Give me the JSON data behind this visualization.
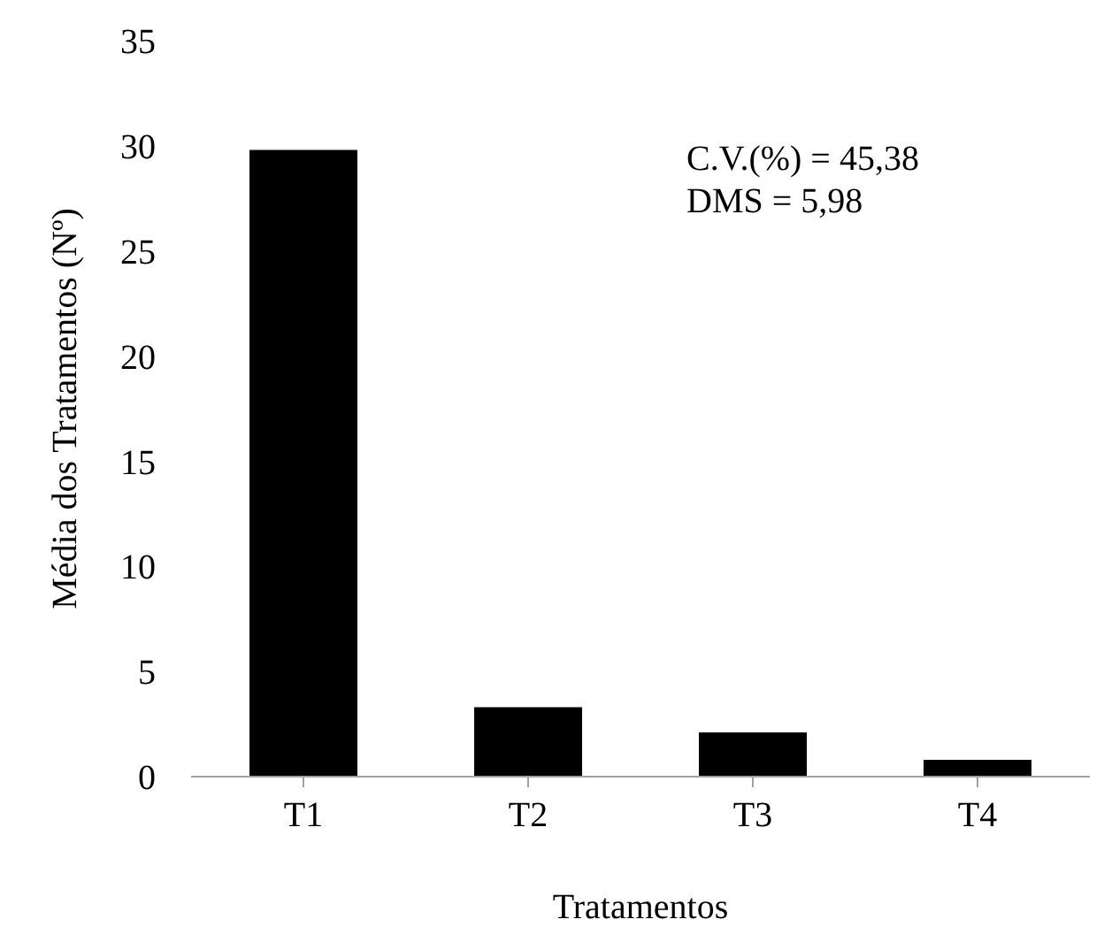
{
  "chart_data": {
    "type": "bar",
    "xlabel": "Tratamentos",
    "ylabel": "Média dos Tratamentos (Nº)",
    "categories": [
      "T1",
      "T2",
      "T3",
      "T4"
    ],
    "values": [
      29.8,
      3.3,
      2.1,
      0.8
    ],
    "color": "#000000",
    "ylim": [
      0,
      35
    ],
    "yticks": [
      0,
      5,
      10,
      15,
      20,
      25,
      30,
      35
    ],
    "annotations": [
      "C.V.(%) = 45,38",
      "DMS = 5,98"
    ]
  }
}
